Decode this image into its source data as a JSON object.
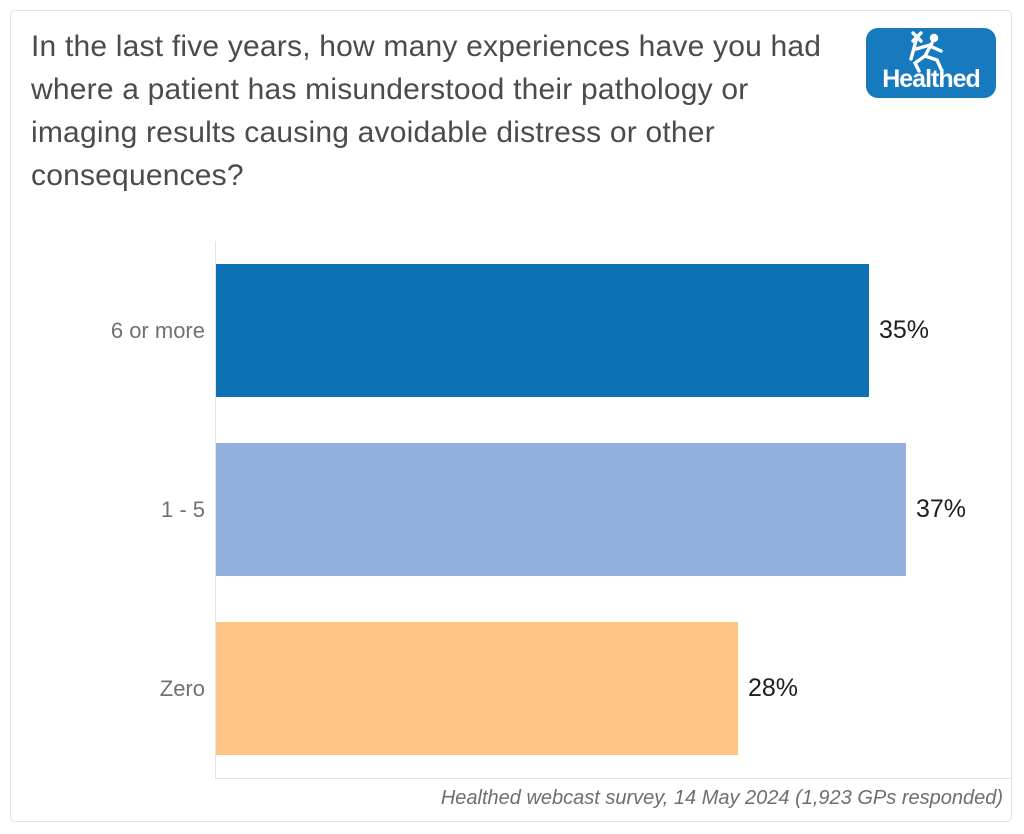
{
  "logo": {
    "text": "Healthed",
    "background": "#1779be",
    "icon": "hermes-runner-icon"
  },
  "chart_data": {
    "type": "bar",
    "orientation": "horizontal",
    "title": "In the last five years, how many experiences have you had where a patient has misunderstood their pathology or imaging results causing avoidable distress or other consequences?",
    "categories": [
      "6 or more",
      "1 - 5",
      "Zero"
    ],
    "values": [
      35,
      37,
      28
    ],
    "value_labels": [
      "35%",
      "37%",
      "28%"
    ],
    "bar_colors": [
      "#0d73b5",
      "#93afdd",
      "#fdc485"
    ],
    "xlabel": "",
    "ylabel": "",
    "xlim": [
      0,
      40
    ],
    "grid": false,
    "legend": false,
    "value_label_position": "right-of-bar",
    "source_note": "Healthed webcast survey, 14 May 2024 (1,923 GPs responded)",
    "colors": {
      "title_text": "#4b4b4b",
      "category_text": "#717171",
      "value_text": "#1e1e1e",
      "axis_line": "#e3e3e3",
      "footer_text": "#6e6e6e"
    }
  }
}
